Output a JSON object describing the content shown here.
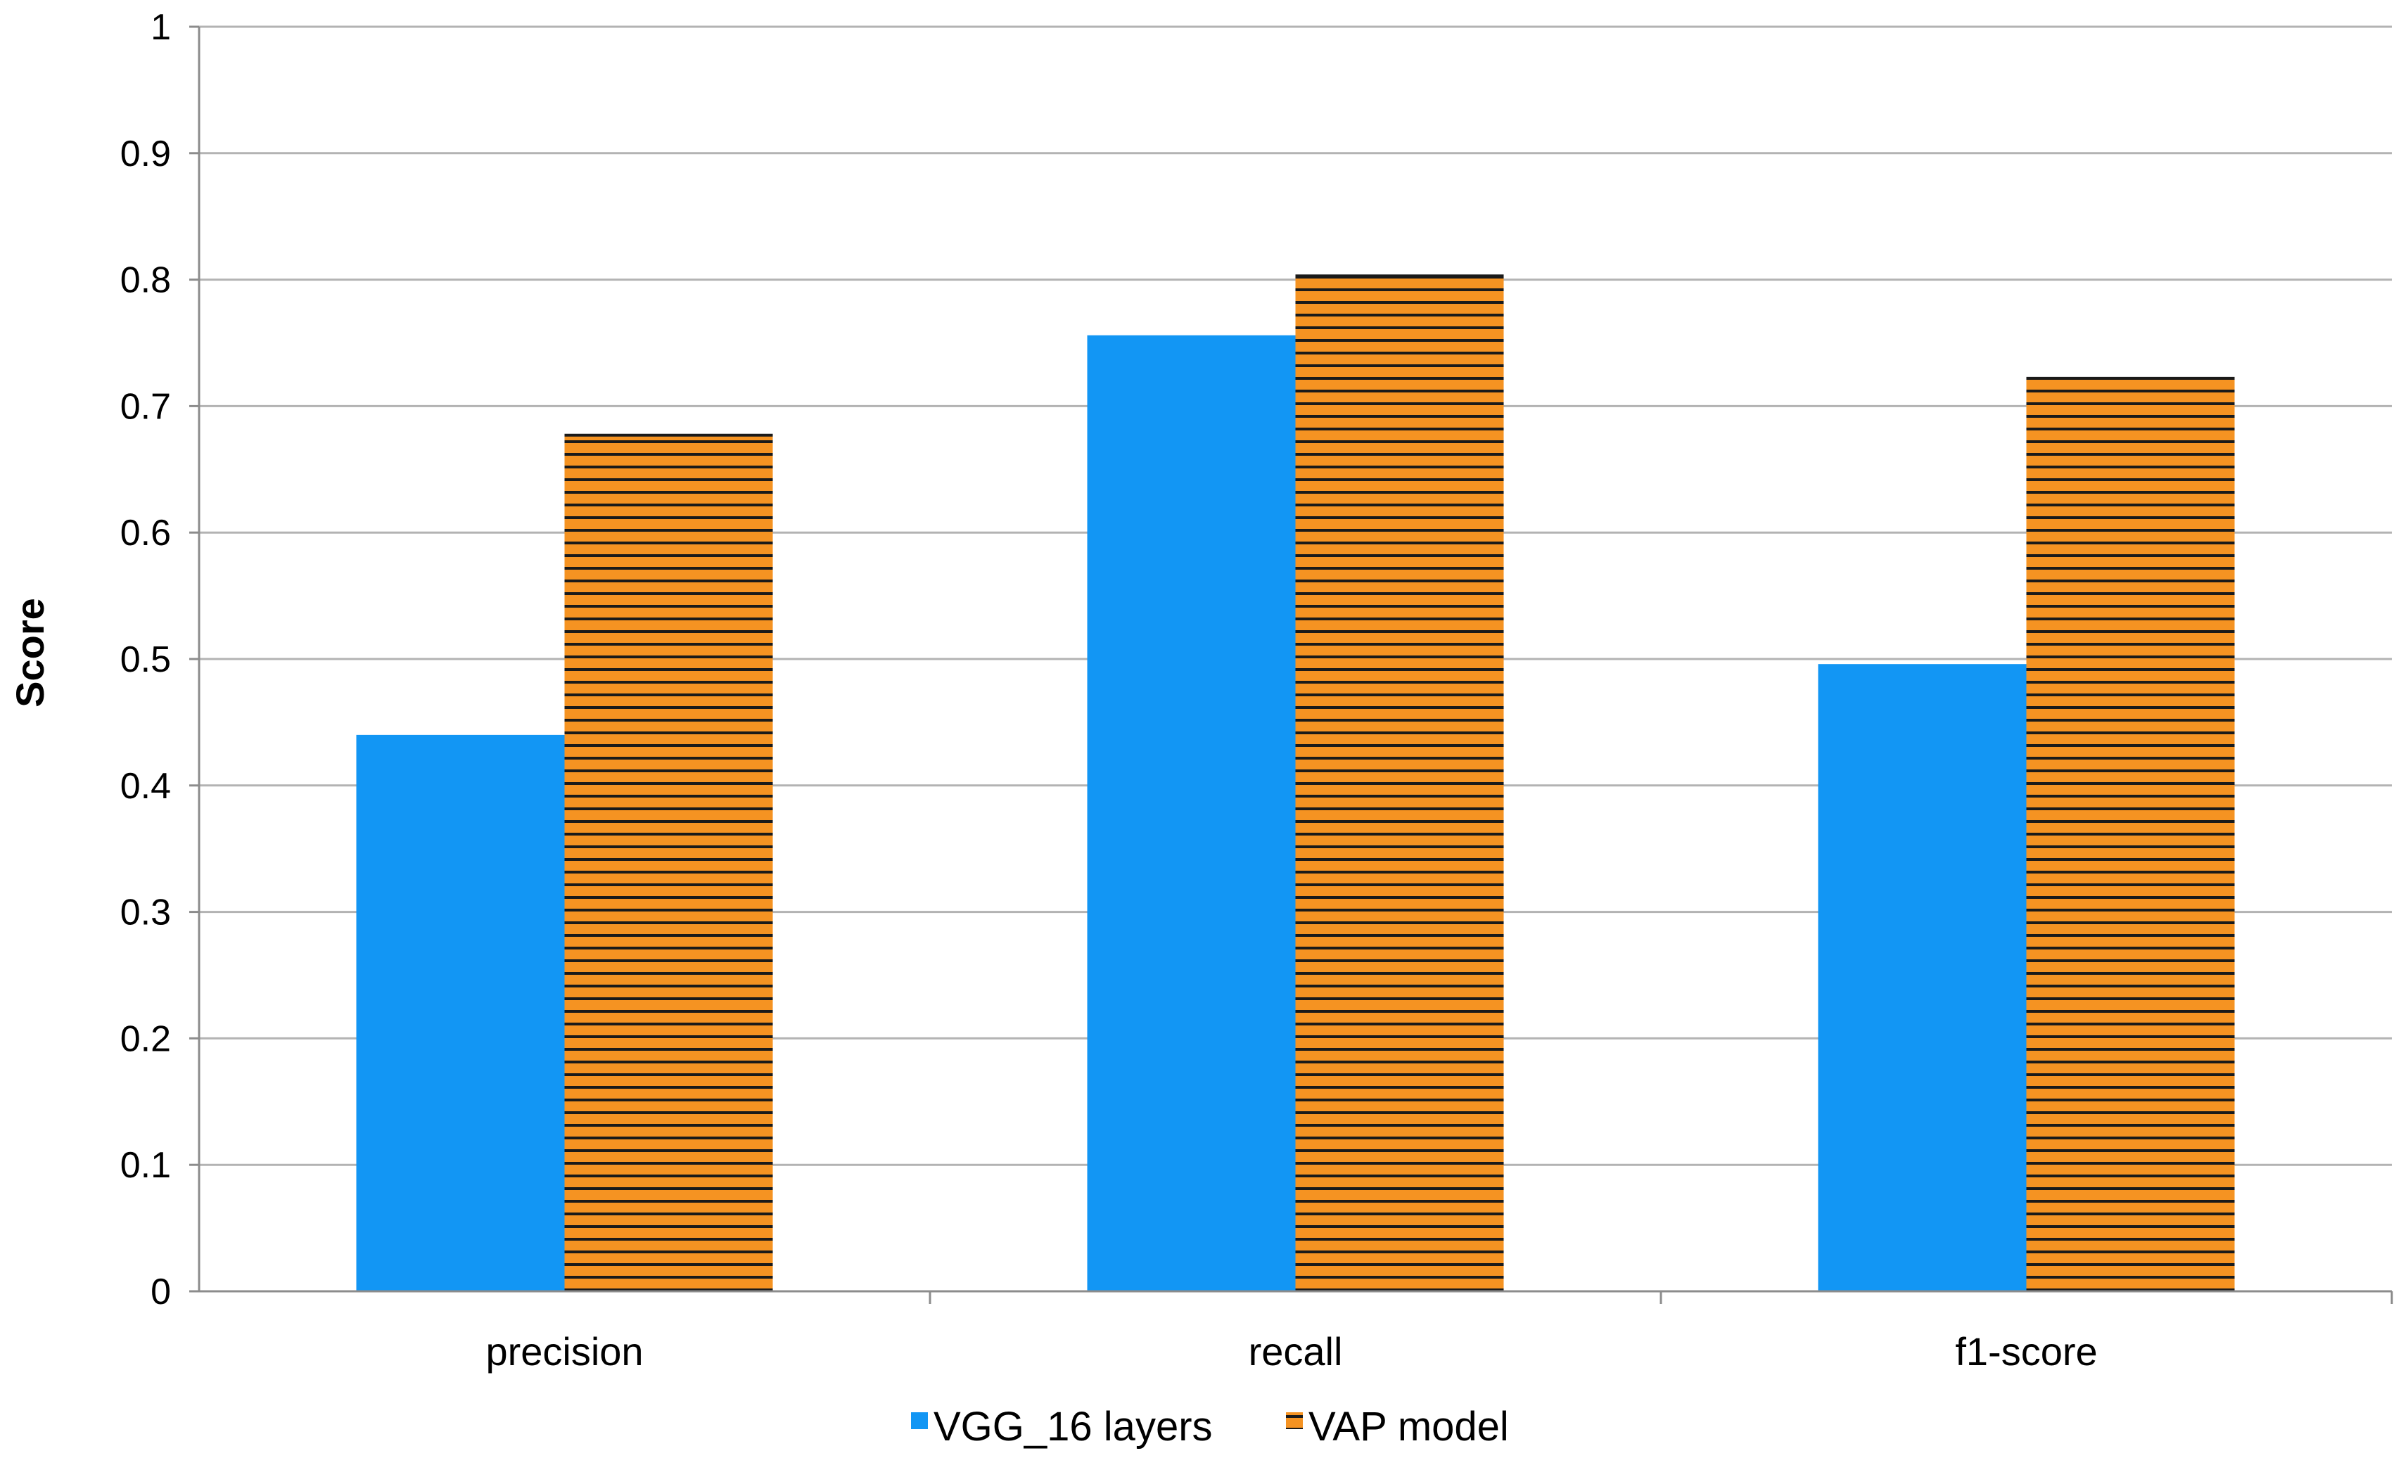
{
  "chart_data": {
    "type": "bar",
    "title": "",
    "xlabel": "",
    "ylabel": "Score",
    "ylim": [
      0,
      1
    ],
    "yticks": [
      "0",
      "0.1",
      "0.2",
      "0.3",
      "0.4",
      "0.5",
      "0.6",
      "0.7",
      "0.8",
      "0.9",
      "1"
    ],
    "grid": true,
    "legend_position": "bottom",
    "categories": [
      "precision",
      "recall",
      "f1-score"
    ],
    "series": [
      {
        "name": "VGG_16 layers",
        "color": "#1296f4",
        "pattern": "solid",
        "values": [
          0.44,
          0.756,
          0.496
        ]
      },
      {
        "name": "VAP model",
        "color": "#f59322",
        "pattern": "horizontal-stripes",
        "values": [
          0.677,
          0.803,
          0.722
        ]
      }
    ]
  }
}
